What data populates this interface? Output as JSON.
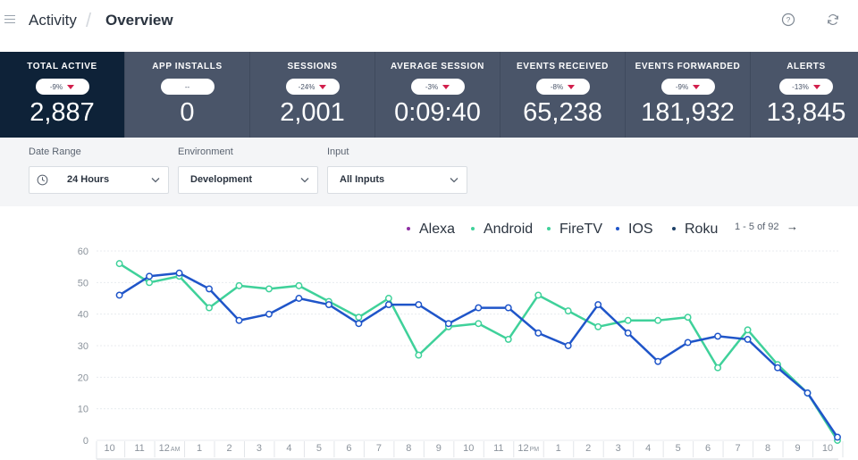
{
  "header": {
    "breadcrumb": [
      "Activity",
      "Overview"
    ],
    "help_icon": "help-circle-icon",
    "refresh_icon": "refresh-icon"
  },
  "kpis": [
    {
      "label": "TOTAL ACTIVE",
      "change": "-9%",
      "value": "2,887",
      "active": true
    },
    {
      "label": "APP INSTALLS",
      "change": "--",
      "value": "0",
      "active": false
    },
    {
      "label": "SESSIONS",
      "change": "-24%",
      "value": "2,001",
      "active": false
    },
    {
      "label": "AVERAGE SESSION",
      "change": "-3%",
      "value": "0:09:40",
      "active": false
    },
    {
      "label": "EVENTS RECEIVED",
      "change": "-8%",
      "value": "65,238",
      "active": false
    },
    {
      "label": "EVENTS FORWARDED",
      "change": "-9%",
      "value": "181,932",
      "active": false
    },
    {
      "label": "ALERTS",
      "change": "-13%",
      "value": "13,845",
      "active": false
    }
  ],
  "filters": {
    "date_range": {
      "label": "Date Range",
      "value": "24 Hours"
    },
    "environment": {
      "label": "Environment",
      "value": "Development"
    },
    "input": {
      "label": "Input",
      "value": "All Inputs"
    }
  },
  "legend": {
    "items": [
      {
        "name": "Alexa",
        "color": "#8e2fa3"
      },
      {
        "name": "Android",
        "color": "#3fd19a"
      },
      {
        "name": "FireTV",
        "color": "#3fd19a"
      },
      {
        "name": "IOS",
        "color": "#1f55c9"
      },
      {
        "name": "Roku",
        "color": "#1b3f66"
      }
    ],
    "pager": "1 - 5 of 92",
    "pager_arrow": "→"
  },
  "chart_data": {
    "type": "line",
    "x": [
      "10",
      "11",
      "12 AM",
      "1",
      "2",
      "3",
      "4",
      "5",
      "6",
      "7",
      "8",
      "9",
      "10",
      "11",
      "12 PM",
      "1",
      "2",
      "3",
      "4",
      "5",
      "6",
      "7",
      "8",
      "9",
      "10"
    ],
    "ylim": [
      0,
      60
    ],
    "yticks": [
      0,
      10,
      20,
      30,
      40,
      50,
      60
    ],
    "grid": true,
    "series": [
      {
        "name": "Android",
        "color": "#3fd19a",
        "values": [
          56,
          50,
          52,
          42,
          49,
          48,
          49,
          44,
          39,
          45,
          27,
          36,
          37,
          32,
          46,
          41,
          36,
          38,
          38,
          39,
          23,
          35,
          24,
          15,
          0
        ]
      },
      {
        "name": "IOS",
        "color": "#1f55c9",
        "values": [
          46,
          52,
          53,
          48,
          38,
          40,
          45,
          43,
          37,
          43,
          43,
          37,
          42,
          42,
          34,
          30,
          43,
          34,
          25,
          31,
          33,
          32,
          23,
          15,
          1
        ]
      }
    ]
  }
}
